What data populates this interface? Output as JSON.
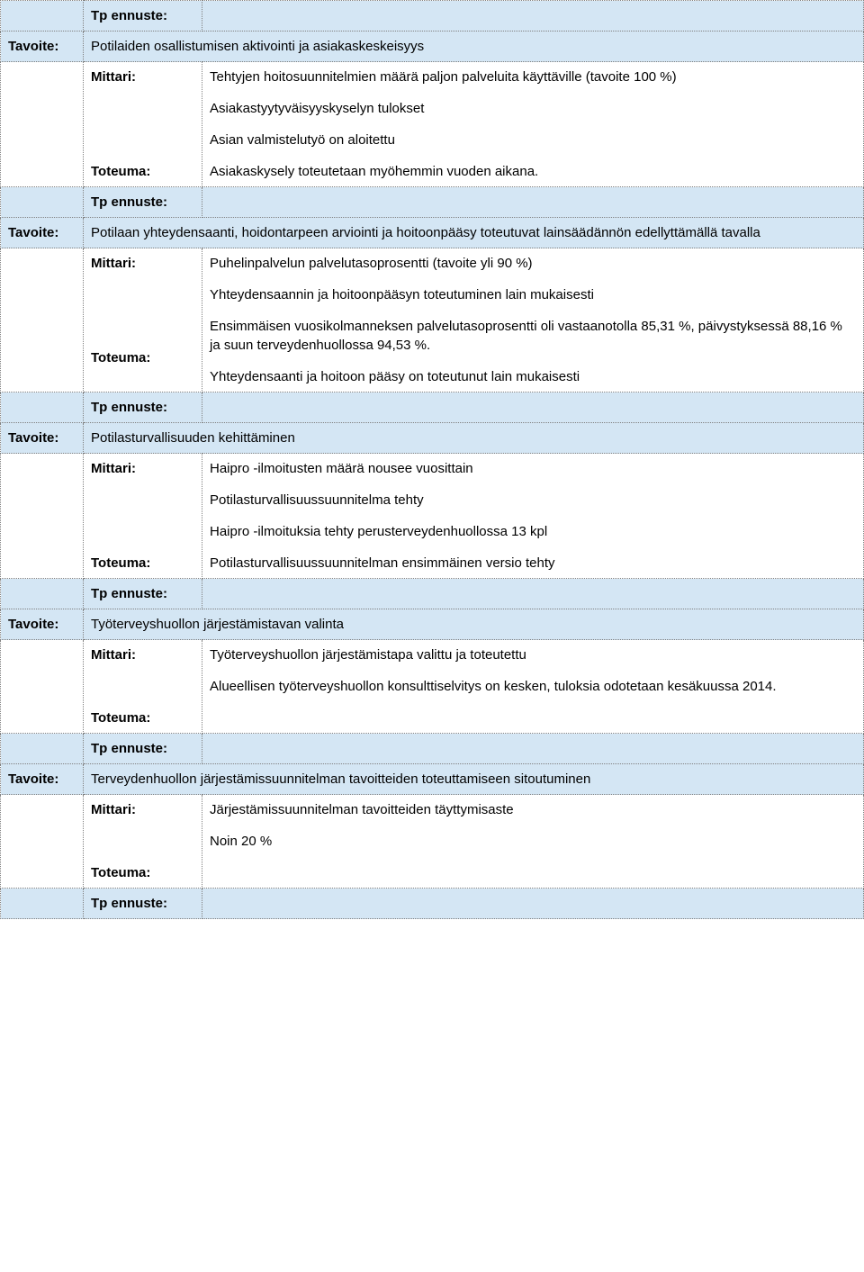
{
  "labels": {
    "tavoite": "Tavoite:",
    "mittari": "Mittari:",
    "toteuma": "Toteuma:",
    "tp_ennuste": "Tp ennuste:"
  },
  "rows": [
    {
      "type": "tp",
      "col0": "",
      "col1_key": "tp_ennuste",
      "col2": ""
    },
    {
      "type": "goal",
      "col0_key": "tavoite",
      "text": "Potilaiden osallistumisen aktivointi ja asiakaskeskeisyys"
    },
    {
      "type": "detail",
      "mittari": [
        "Tehtyjen hoitosuunnitelmien määrä paljon palveluita käyttäville (tavoite 100 %)",
        "Asiakastyytyväisyyskyselyn tulokset"
      ],
      "toteuma": [
        "Asian valmistelutyö on aloitettu",
        "Asiakaskysely toteutetaan myöhemmin vuoden aikana."
      ]
    },
    {
      "type": "tp",
      "col0": "",
      "col1_key": "tp_ennuste",
      "col2": ""
    },
    {
      "type": "goal",
      "col0_key": "tavoite",
      "text": "Potilaan yhteydensaanti, hoidontarpeen arviointi ja hoitoonpääsy toteutuvat lainsäädännön edellyttämällä tavalla"
    },
    {
      "type": "detail",
      "mittari": [
        "Puhelinpalvelun palvelutasoprosentti (tavoite yli 90 %)",
        "Yhteydensaannin ja hoitoonpääsyn toteutuminen lain mukaisesti"
      ],
      "toteuma": [
        "Ensimmäisen vuosikolmanneksen palvelutasoprosentti oli vastaanotolla 85,31 %, päivystyksessä 88,16 % ja suun terveydenhuollossa 94,53 %.",
        "Yhteydensaanti ja hoitoon pääsy on toteutunut lain mukaisesti"
      ]
    },
    {
      "type": "tp",
      "col0": "",
      "col1_key": "tp_ennuste",
      "col2": ""
    },
    {
      "type": "goal",
      "col0_key": "tavoite",
      "text": "Potilasturvallisuuden kehittäminen"
    },
    {
      "type": "detail",
      "mittari": [
        "Haipro -ilmoitusten määrä nousee vuosittain",
        "Potilasturvallisuussuunnitelma tehty"
      ],
      "toteuma": [
        "Haipro -ilmoituksia tehty perusterveydenhuollossa 13 kpl",
        "Potilasturvallisuussuunnitelman ensimmäinen versio tehty"
      ]
    },
    {
      "type": "tp",
      "col0": "",
      "col1_key": "tp_ennuste",
      "col2": ""
    },
    {
      "type": "goal",
      "col0_key": "tavoite",
      "text": "Työterveyshuollon järjestämistavan valinta"
    },
    {
      "type": "detail",
      "mittari": [
        "Työterveyshuollon järjestämistapa valittu ja toteutettu"
      ],
      "toteuma": [
        "Alueellisen työterveyshuollon konsulttiselvitys on kesken, tuloksia odotetaan kesäkuussa 2014."
      ]
    },
    {
      "type": "tp",
      "col0": "",
      "col1_key": "tp_ennuste",
      "col2": ""
    },
    {
      "type": "goal",
      "col0_key": "tavoite",
      "text": "Terveydenhuollon järjestämissuunnitelman tavoitteiden toteuttamiseen sitoutuminen"
    },
    {
      "type": "detail",
      "mittari": [
        "Järjestämissuunnitelman tavoitteiden täyttymisaste"
      ],
      "toteuma": [
        "Noin 20 %"
      ]
    },
    {
      "type": "tp",
      "col0": "",
      "col1_key": "tp_ennuste",
      "col2": ""
    }
  ]
}
